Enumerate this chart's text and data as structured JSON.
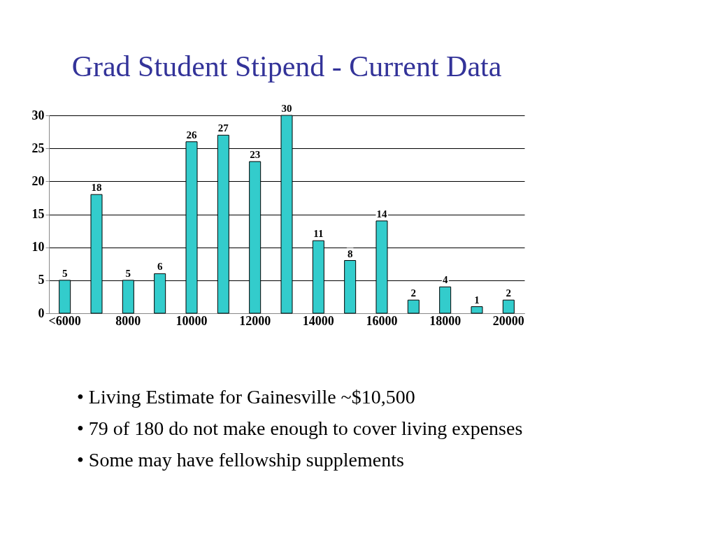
{
  "chart_data": {
    "type": "bar",
    "title": "Grad Student Stipend - Current Data",
    "categories": [
      "<6000",
      null,
      "8000",
      null,
      "10000",
      null,
      "12000",
      null,
      "14000",
      null,
      "16000",
      null,
      "18000",
      null,
      "20000"
    ],
    "values": [
      5,
      18,
      5,
      6,
      26,
      27,
      23,
      30,
      11,
      8,
      14,
      2,
      4,
      1,
      2
    ],
    "color": "#33cccc",
    "ylim": [
      0,
      30
    ],
    "yticks": [
      0,
      5,
      10,
      15,
      20,
      25,
      30
    ],
    "grid": "y",
    "data_labels": true,
    "annotations": [
      "• Living Estimate for Gainesville ~$10,500",
      "• 79 of 180 do not make enough to cover living expenses",
      "• Some may have fellowship supplements"
    ]
  }
}
